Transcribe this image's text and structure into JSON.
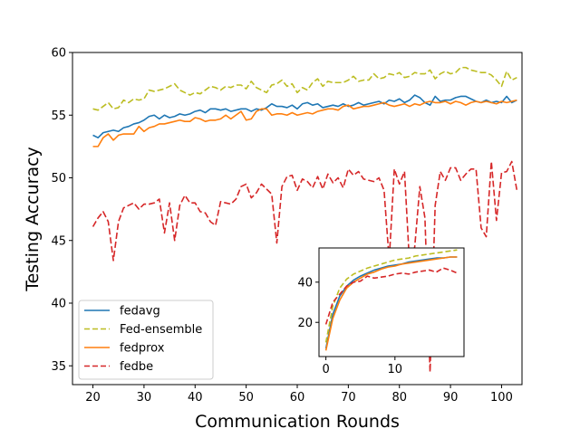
{
  "chart_data": {
    "main": {
      "type": "line",
      "xlabel": "Communication Rounds",
      "ylabel": "Testing Accuracy",
      "xlim": [
        16,
        104
      ],
      "ylim": [
        33.5,
        60
      ],
      "xticks": [
        20,
        30,
        40,
        50,
        60,
        70,
        80,
        90,
        100
      ],
      "yticks": [
        35,
        40,
        45,
        50,
        55,
        60
      ],
      "legend_position": "lower-left",
      "x_start": 20,
      "series": [
        {
          "name": "fedavg",
          "color": "#1f77b4",
          "dash": "solid",
          "values": [
            53.4,
            53.2,
            53.6,
            53.7,
            53.8,
            53.7,
            54.0,
            54.1,
            54.3,
            54.4,
            54.6,
            54.9,
            55.0,
            54.7,
            55.0,
            54.8,
            54.9,
            55.1,
            55.0,
            55.1,
            55.3,
            55.4,
            55.2,
            55.5,
            55.5,
            55.4,
            55.5,
            55.3,
            55.4,
            55.5,
            55.5,
            55.3,
            55.5,
            55.4,
            55.6,
            55.9,
            55.7,
            55.7,
            55.6,
            55.8,
            55.5,
            55.9,
            56.0,
            55.8,
            55.9,
            55.6,
            55.7,
            55.8,
            55.7,
            55.9,
            55.7,
            55.8,
            56.0,
            55.8,
            55.9,
            56.0,
            56.1,
            55.9,
            56.2,
            56.1,
            56.3,
            56.0,
            56.2,
            56.6,
            56.4,
            56.0,
            55.8,
            56.5,
            56.1,
            56.2,
            56.2,
            56.4,
            56.5,
            56.5,
            56.3,
            56.1,
            56.0,
            56.2,
            56.0,
            56.1,
            56.0,
            56.5,
            56.0,
            56.2
          ]
        },
        {
          "name": "Fed-ensemble",
          "color": "#bcbd22",
          "dash": "dashed",
          "values": [
            55.5,
            55.4,
            55.7,
            56.0,
            55.5,
            55.6,
            56.2,
            56.0,
            56.3,
            56.2,
            56.3,
            57.0,
            56.9,
            57.0,
            57.1,
            57.3,
            57.5,
            57.0,
            56.8,
            56.6,
            56.8,
            56.7,
            57.0,
            57.3,
            57.2,
            57.0,
            57.3,
            57.2,
            57.4,
            57.4,
            57.1,
            57.7,
            57.2,
            57.0,
            56.8,
            57.4,
            57.5,
            57.8,
            57.3,
            57.5,
            56.8,
            57.2,
            57.0,
            57.6,
            57.9,
            57.3,
            57.7,
            57.6,
            57.6,
            57.6,
            57.8,
            58.1,
            57.7,
            57.8,
            57.8,
            58.3,
            57.9,
            58.0,
            58.3,
            58.2,
            58.4,
            58.0,
            58.1,
            58.4,
            58.3,
            58.3,
            58.6,
            57.9,
            58.3,
            58.5,
            58.3,
            58.4,
            58.8,
            58.8,
            58.6,
            58.5,
            58.4,
            58.4,
            58.2,
            57.8,
            57.3,
            58.5,
            57.8,
            58.0
          ]
        },
        {
          "name": "fedprox",
          "color": "#ff7f0e",
          "dash": "solid",
          "values": [
            52.5,
            52.5,
            53.2,
            53.5,
            53.0,
            53.4,
            53.5,
            53.5,
            53.5,
            54.1,
            53.7,
            54.0,
            54.1,
            54.3,
            54.3,
            54.4,
            54.5,
            54.6,
            54.5,
            54.5,
            54.8,
            54.7,
            54.5,
            54.6,
            54.6,
            54.7,
            55.0,
            54.7,
            55.0,
            55.3,
            54.6,
            54.7,
            55.3,
            55.5,
            55.5,
            55.0,
            55.1,
            55.1,
            55.0,
            55.2,
            55.0,
            55.1,
            55.2,
            55.1,
            55.3,
            55.4,
            55.5,
            55.5,
            55.4,
            55.7,
            55.8,
            55.5,
            55.6,
            55.7,
            55.7,
            55.8,
            55.9,
            56.0,
            55.8,
            55.7,
            55.8,
            55.9,
            55.7,
            55.9,
            55.8,
            56.0,
            56.1,
            56.0,
            56.0,
            56.1,
            55.9,
            56.1,
            56.0,
            55.8,
            56.0,
            56.1,
            56.0,
            56.1,
            56.0,
            55.9,
            56.1,
            56.0,
            56.1,
            56.2
          ]
        },
        {
          "name": "fedbe",
          "color": "#d62728",
          "dash": "dashed",
          "values": [
            46.1,
            46.8,
            47.3,
            46.5,
            43.4,
            46.5,
            47.6,
            47.8,
            48.0,
            47.5,
            47.9,
            47.9,
            48.0,
            48.3,
            45.6,
            48.0,
            45.0,
            47.8,
            48.6,
            48.0,
            48.0,
            47.3,
            47.2,
            46.5,
            46.2,
            48.1,
            48.0,
            47.9,
            48.3,
            49.3,
            49.5,
            48.4,
            48.8,
            49.5,
            49.1,
            48.7,
            44.8,
            49.3,
            50.1,
            50.2,
            49.0,
            49.9,
            49.7,
            49.2,
            50.1,
            49.1,
            50.3,
            49.6,
            50.0,
            49.2,
            50.7,
            50.2,
            50.5,
            49.9,
            49.8,
            49.7,
            50.0,
            49.0,
            43.4,
            50.7,
            49.5,
            50.5,
            43.0,
            44.5,
            49.3,
            46.8,
            34.5,
            47.8,
            50.5,
            49.8,
            50.8,
            50.8,
            49.8,
            50.3,
            50.7,
            50.7,
            46.0,
            45.3,
            51.3,
            46.6,
            50.4,
            50.5,
            51.3,
            49.0
          ]
        }
      ]
    },
    "inset": {
      "type": "line",
      "xlim": [
        -1,
        20
      ],
      "ylim": [
        3,
        57
      ],
      "xticks": [
        0,
        10
      ],
      "yticks": [
        20,
        40
      ],
      "x_start": 0,
      "series": [
        {
          "name": "fedavg",
          "color": "#1f77b4",
          "dash": "solid",
          "values": [
            7,
            24,
            33,
            38,
            41,
            43,
            44.5,
            46,
            47,
            48,
            48.5,
            49,
            50,
            50.5,
            51,
            51.5,
            52,
            52,
            52.5,
            52.5
          ]
        },
        {
          "name": "Fed-ensemble",
          "color": "#bcbd22",
          "dash": "dashed",
          "values": [
            10,
            28,
            37,
            41.5,
            44,
            45.5,
            47,
            48,
            49,
            50,
            51,
            51.5,
            52,
            53,
            53.5,
            54,
            54.5,
            55,
            55.5,
            56
          ]
        },
        {
          "name": "fedprox",
          "color": "#ff7f0e",
          "dash": "solid",
          "values": [
            6,
            22,
            31,
            37,
            40,
            42,
            44,
            45,
            46.5,
            47.5,
            48,
            49,
            49.5,
            50,
            50.5,
            51,
            51.5,
            52,
            52.5,
            52.5
          ]
        },
        {
          "name": "fedbe",
          "color": "#d62728",
          "dash": "dashed",
          "values": [
            19,
            30,
            34,
            38,
            40,
            40.5,
            43,
            42,
            42.5,
            43,
            44,
            44.5,
            44,
            45,
            45.5,
            46,
            45,
            47,
            46,
            44.5
          ]
        }
      ]
    },
    "legend": {
      "items": [
        {
          "label": "fedavg",
          "color": "#1f77b4",
          "dash": "solid"
        },
        {
          "label": "Fed-ensemble",
          "color": "#bcbd22",
          "dash": "dashed"
        },
        {
          "label": "fedprox",
          "color": "#ff7f0e",
          "dash": "solid"
        },
        {
          "label": "fedbe",
          "color": "#d62728",
          "dash": "dashed"
        }
      ]
    }
  }
}
